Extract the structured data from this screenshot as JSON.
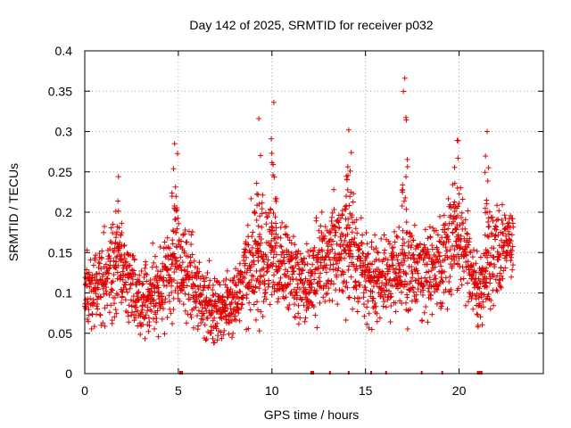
{
  "chart_data": {
    "type": "scatter",
    "title": "Day 142 of 2025, SRMTID for receiver p032",
    "xlabel": "GPS time / hours",
    "ylabel": "SRMTID / TECUs",
    "xlim": [
      0,
      24.5
    ],
    "ylim": [
      0,
      0.4
    ],
    "xticks": [
      0,
      5,
      10,
      15,
      20
    ],
    "xtick_labels": [
      "0",
      "5",
      "10",
      "15",
      "20"
    ],
    "yticks": [
      0,
      0.05,
      0.1,
      0.15,
      0.2,
      0.25,
      0.3,
      0.35,
      0.4
    ],
    "ytick_labels": [
      "0",
      "0.05",
      "0.1",
      "0.15",
      "0.2",
      "0.25",
      "0.3",
      "0.35",
      "0.4"
    ],
    "grid": true,
    "marker": "+",
    "color": "#e00000",
    "series": [
      {
        "name": "SRMTID",
        "x_range_hours": [
          0.0,
          22.9
        ],
        "approx_point_count": 2300,
        "profile_hour": [
          0,
          1,
          2,
          3,
          4,
          5,
          6,
          7,
          8,
          9,
          10,
          11,
          12,
          13,
          14,
          15,
          16,
          17,
          18,
          19,
          20,
          21,
          22,
          23
        ],
        "profile_mean": [
          0.1,
          0.12,
          0.13,
          0.09,
          0.1,
          0.15,
          0.1,
          0.08,
          0.09,
          0.14,
          0.14,
          0.12,
          0.11,
          0.14,
          0.16,
          0.12,
          0.11,
          0.13,
          0.12,
          0.14,
          0.17,
          0.1,
          0.15,
          0.17
        ],
        "profile_spread": [
          0.03,
          0.04,
          0.04,
          0.03,
          0.035,
          0.05,
          0.035,
          0.03,
          0.03,
          0.05,
          0.045,
          0.04,
          0.035,
          0.045,
          0.05,
          0.035,
          0.035,
          0.045,
          0.04,
          0.045,
          0.05,
          0.03,
          0.04,
          0.035
        ],
        "peaks": [
          {
            "x": 1.8,
            "y": 0.244
          },
          {
            "x": 4.8,
            "y": 0.285
          },
          {
            "x": 9.3,
            "y": 0.316
          },
          {
            "x": 10.1,
            "y": 0.336
          },
          {
            "x": 14.1,
            "y": 0.302
          },
          {
            "x": 17.1,
            "y": 0.366
          },
          {
            "x": 19.9,
            "y": 0.289
          },
          {
            "x": 21.5,
            "y": 0.3
          }
        ],
        "min_value": 0.025
      }
    ],
    "zero_markers_x": [
      5.1,
      5.2,
      12.1,
      12.2,
      13.1,
      14.1,
      15.3,
      16.1,
      18.0,
      19.1,
      21.0,
      21.1,
      21.2
    ]
  }
}
